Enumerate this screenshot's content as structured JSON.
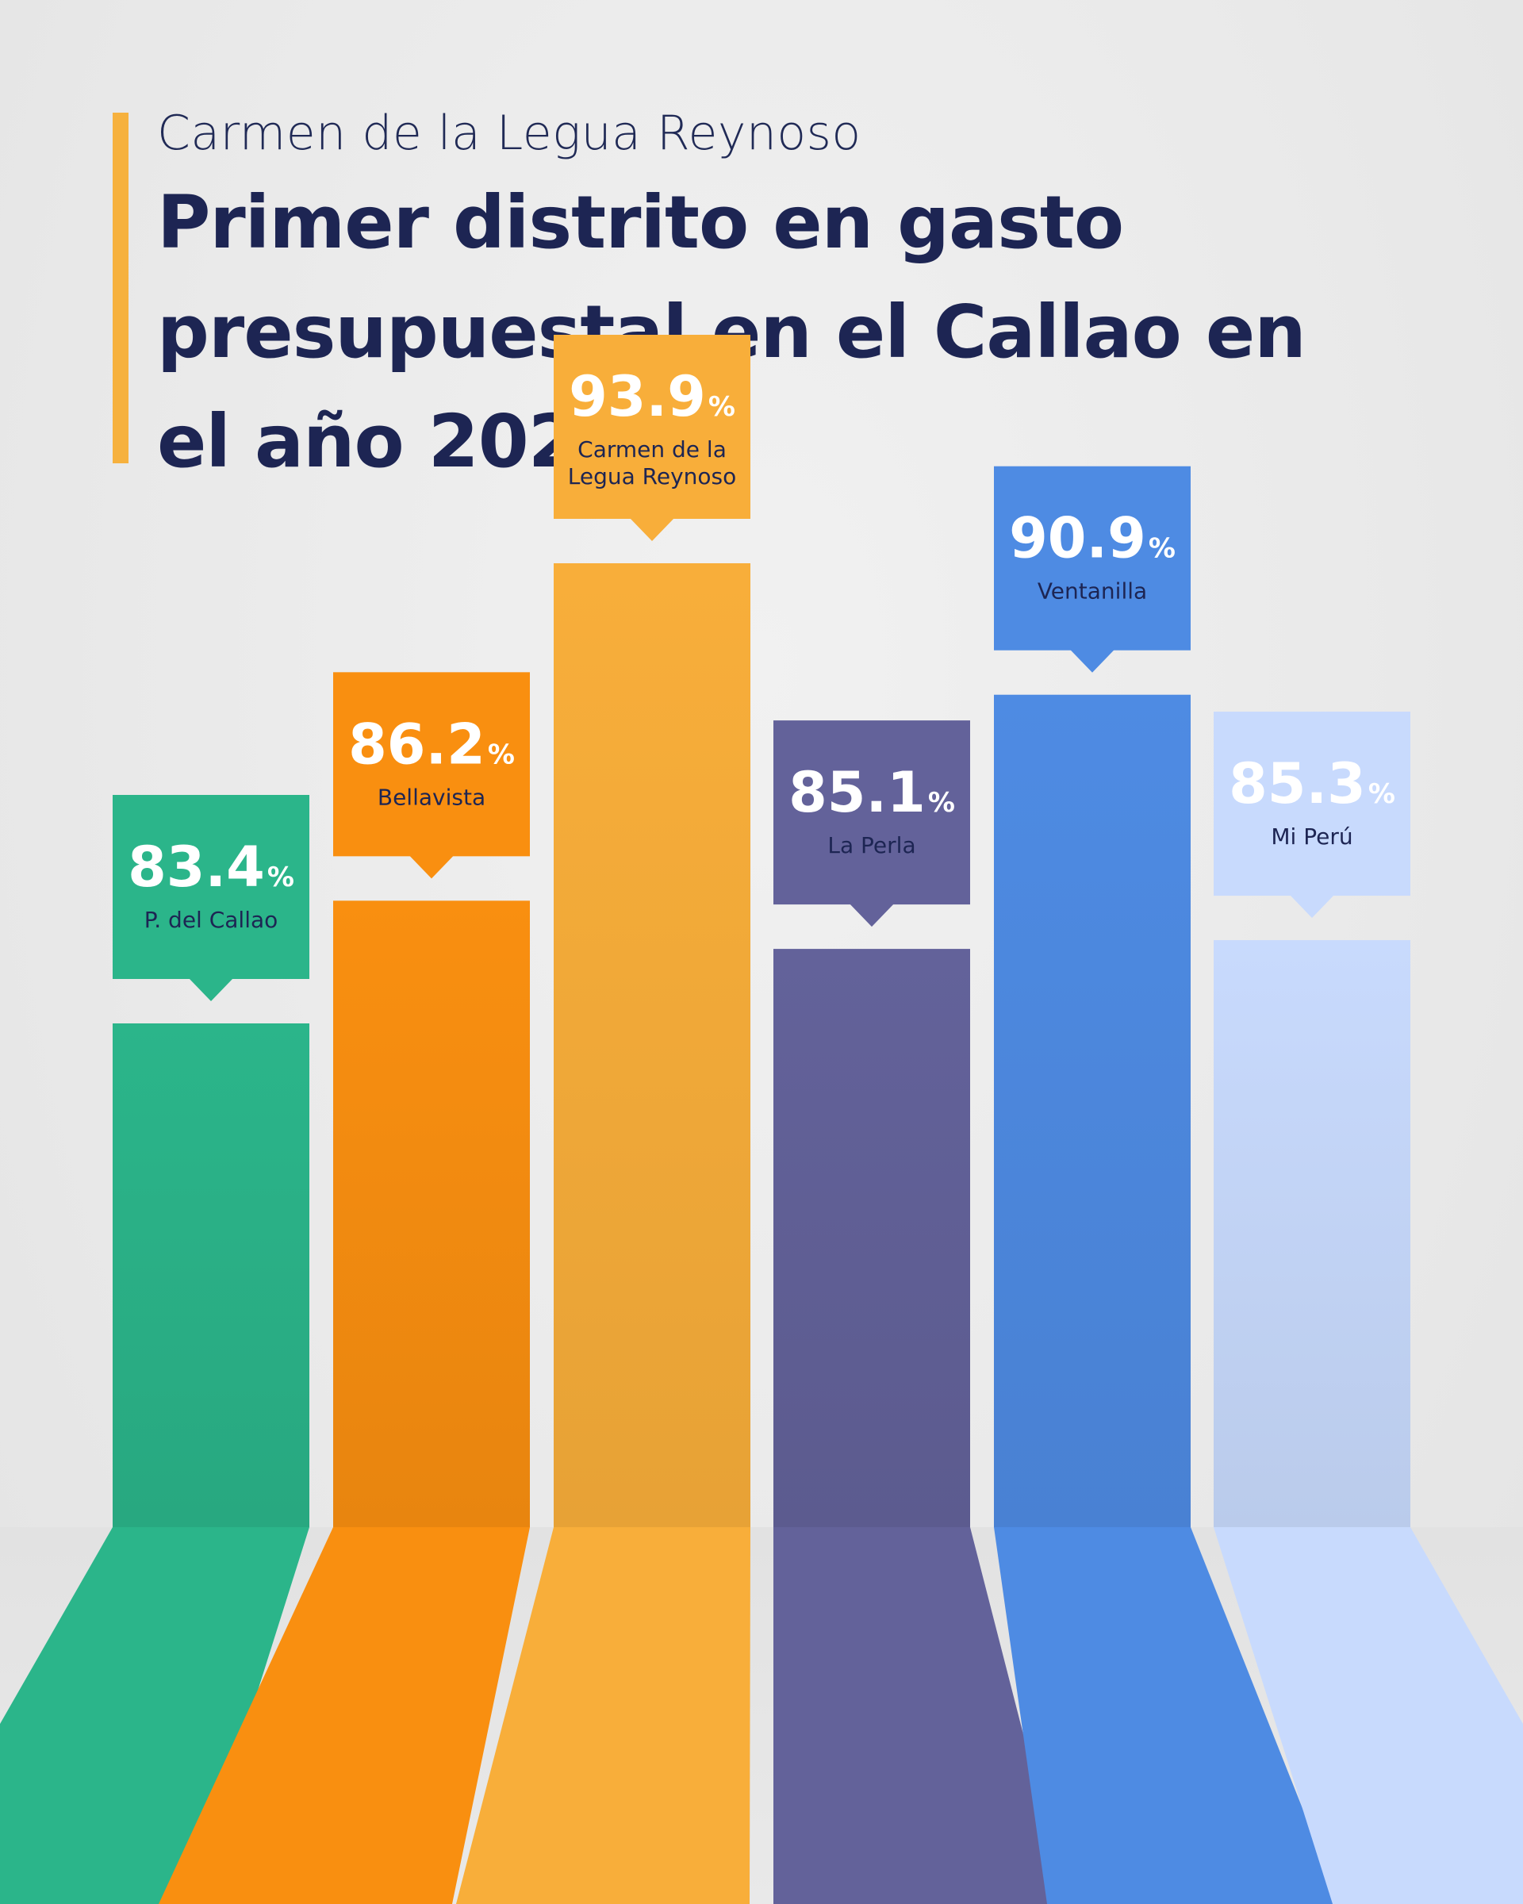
{
  "header": {
    "subtitle": "Carmen de la Legua Reynoso",
    "title": "Primer distrito en gasto presupuestal en el Callao en el año 2025"
  },
  "chart_data": {
    "type": "bar",
    "title": "Primer distrito en gasto presupuestal en el Callao en el año 2025",
    "subtitle": "Carmen de la Legua Reynoso",
    "unit": "%",
    "categories": [
      [
        "P. del Callao"
      ],
      [
        "Bellavista"
      ],
      [
        "Carmen de la",
        "Legua Reynoso"
      ],
      [
        "La Perla"
      ],
      [
        "Ventanilla"
      ],
      [
        "Mi Perú"
      ]
    ],
    "values": [
      83.4,
      86.2,
      93.9,
      85.1,
      90.9,
      85.3
    ],
    "value_labels": [
      "83.4",
      "86.2",
      "93.9",
      "85.1",
      "90.9",
      "85.3"
    ],
    "ylim": [
      70,
      100
    ],
    "grid": false,
    "colors": [
      {
        "bar": "#2bb58a",
        "callout": "#2bb58a",
        "text": "#ffffff",
        "label": "#1d2553"
      },
      {
        "bar": "#f98f10",
        "callout": "#f98f10",
        "text": "#ffffff",
        "label": "#1d2553"
      },
      {
        "bar": "#f8ae3a",
        "callout": "#f8ae3a",
        "text": "#ffffff",
        "label": "#1d2553"
      },
      {
        "bar": "#63629a",
        "callout": "#63629a",
        "text": "#ffffff",
        "label": "#1d2553"
      },
      {
        "bar": "#4e8be3",
        "callout": "#4e8be3",
        "text": "#ffffff",
        "label": "#1d2553"
      },
      {
        "bar": "#c8dafd",
        "callout": "#c8dafd",
        "text": "#ffffff",
        "label": "#1d2553"
      }
    ]
  }
}
